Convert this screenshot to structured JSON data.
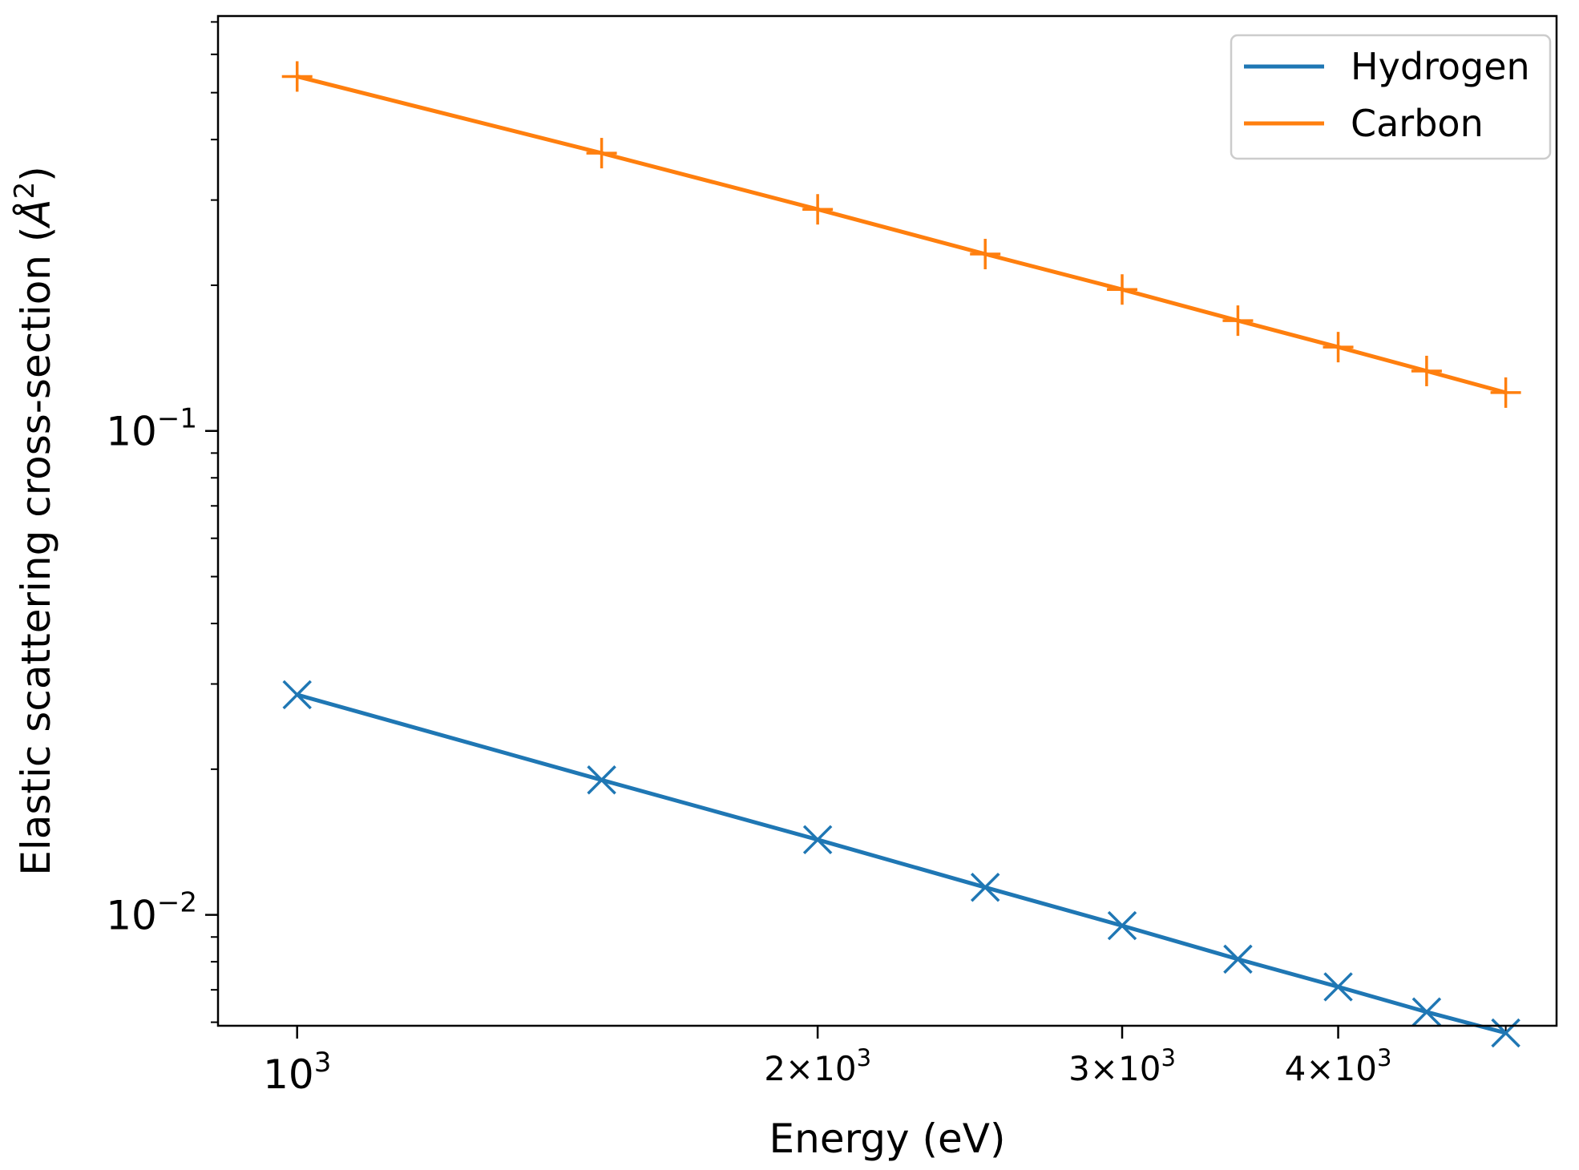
{
  "chart_data": {
    "type": "line",
    "xscale": "log",
    "yscale": "log",
    "xlabel": "Energy (eV)",
    "ylabel": "Elastic scattering cross-section (",
    "ylabel_unit": "Å",
    "ylabel_unit_exp": "2",
    "ylabel_close": ")",
    "xlim": [
      900,
      5350
    ],
    "ylim": [
      0.0059,
      0.72
    ],
    "x": [
      1000,
      1500,
      2000,
      2500,
      3000,
      3500,
      4000,
      4500,
      5000
    ],
    "series": [
      {
        "name": "Hydrogen",
        "color": "#1f77b4",
        "marker": "x",
        "values": [
          0.0285,
          0.019,
          0.0143,
          0.0114,
          0.0095,
          0.0081,
          0.0071,
          0.0063,
          0.0057
        ]
      },
      {
        "name": "Carbon",
        "color": "#ff7f0e",
        "marker": "+",
        "values": [
          0.54,
          0.375,
          0.287,
          0.232,
          0.196,
          0.169,
          0.149,
          0.133,
          0.12
        ]
      }
    ],
    "x_major_ticks": [
      {
        "value": 1000,
        "base": "10",
        "exp": "3",
        "mantissa": ""
      },
      {
        "value": 2000,
        "base": "10",
        "exp": "3",
        "mantissa": "2"
      },
      {
        "value": 3000,
        "base": "10",
        "exp": "3",
        "mantissa": "3"
      },
      {
        "value": 4000,
        "base": "10",
        "exp": "3",
        "mantissa": "4"
      }
    ],
    "x_minor_ticks": [
      5000
    ],
    "y_major_ticks": [
      {
        "value": 0.1,
        "base": "10",
        "exp": "−1"
      },
      {
        "value": 0.01,
        "base": "10",
        "exp": "−2"
      }
    ],
    "y_minor_ticks": [
      0.006,
      0.007,
      0.008,
      0.009,
      0.02,
      0.03,
      0.04,
      0.05,
      0.06,
      0.07,
      0.08,
      0.09,
      0.2,
      0.3,
      0.4,
      0.5,
      0.6,
      0.7
    ],
    "times_symbol": "×",
    "legend_location": "top-right",
    "grid": false
  }
}
